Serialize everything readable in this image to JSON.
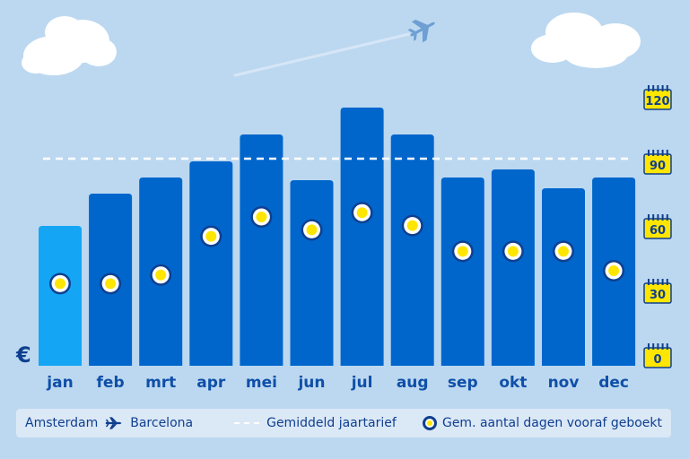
{
  "chart_data": {
    "type": "bar",
    "currency_symbol": "€",
    "categories": [
      "jan",
      "feb",
      "mrt",
      "apr",
      "mei",
      "jun",
      "jul",
      "aug",
      "sep",
      "okt",
      "nov",
      "dec"
    ],
    "values": [
      52,
      64,
      70,
      76,
      86,
      69,
      96,
      86,
      70,
      73,
      66,
      70
    ],
    "value_axis": {
      "labels_shown": false,
      "ylim": [
        0,
        100
      ]
    },
    "highlighted_category": "jan",
    "average_line": {
      "label": "Gemiddeld jaartarief",
      "value": 77
    },
    "days_booked_ahead": {
      "label": "Gem. aantal dagen vooraf geboekt",
      "values": [
        34,
        34,
        38,
        56,
        65,
        59,
        67,
        61,
        49,
        49,
        49,
        40
      ],
      "right_axis_ticks": [
        "120",
        "90",
        "60",
        "30",
        "0"
      ],
      "ylim": [
        0,
        120
      ]
    },
    "colors": {
      "bar": "#0066cc",
      "bar_highlight": "#14a6f5",
      "marker": "#ffe600",
      "axis_text": "#0f4fa8",
      "background": "#bcd8f0"
    }
  },
  "legend": {
    "origin": "Amsterdam",
    "destination": "Barcelona",
    "route_icon": "airplane-icon",
    "average_label": "Gemiddeld jaartarief",
    "days_label": "Gem. aantal dagen vooraf geboekt"
  }
}
